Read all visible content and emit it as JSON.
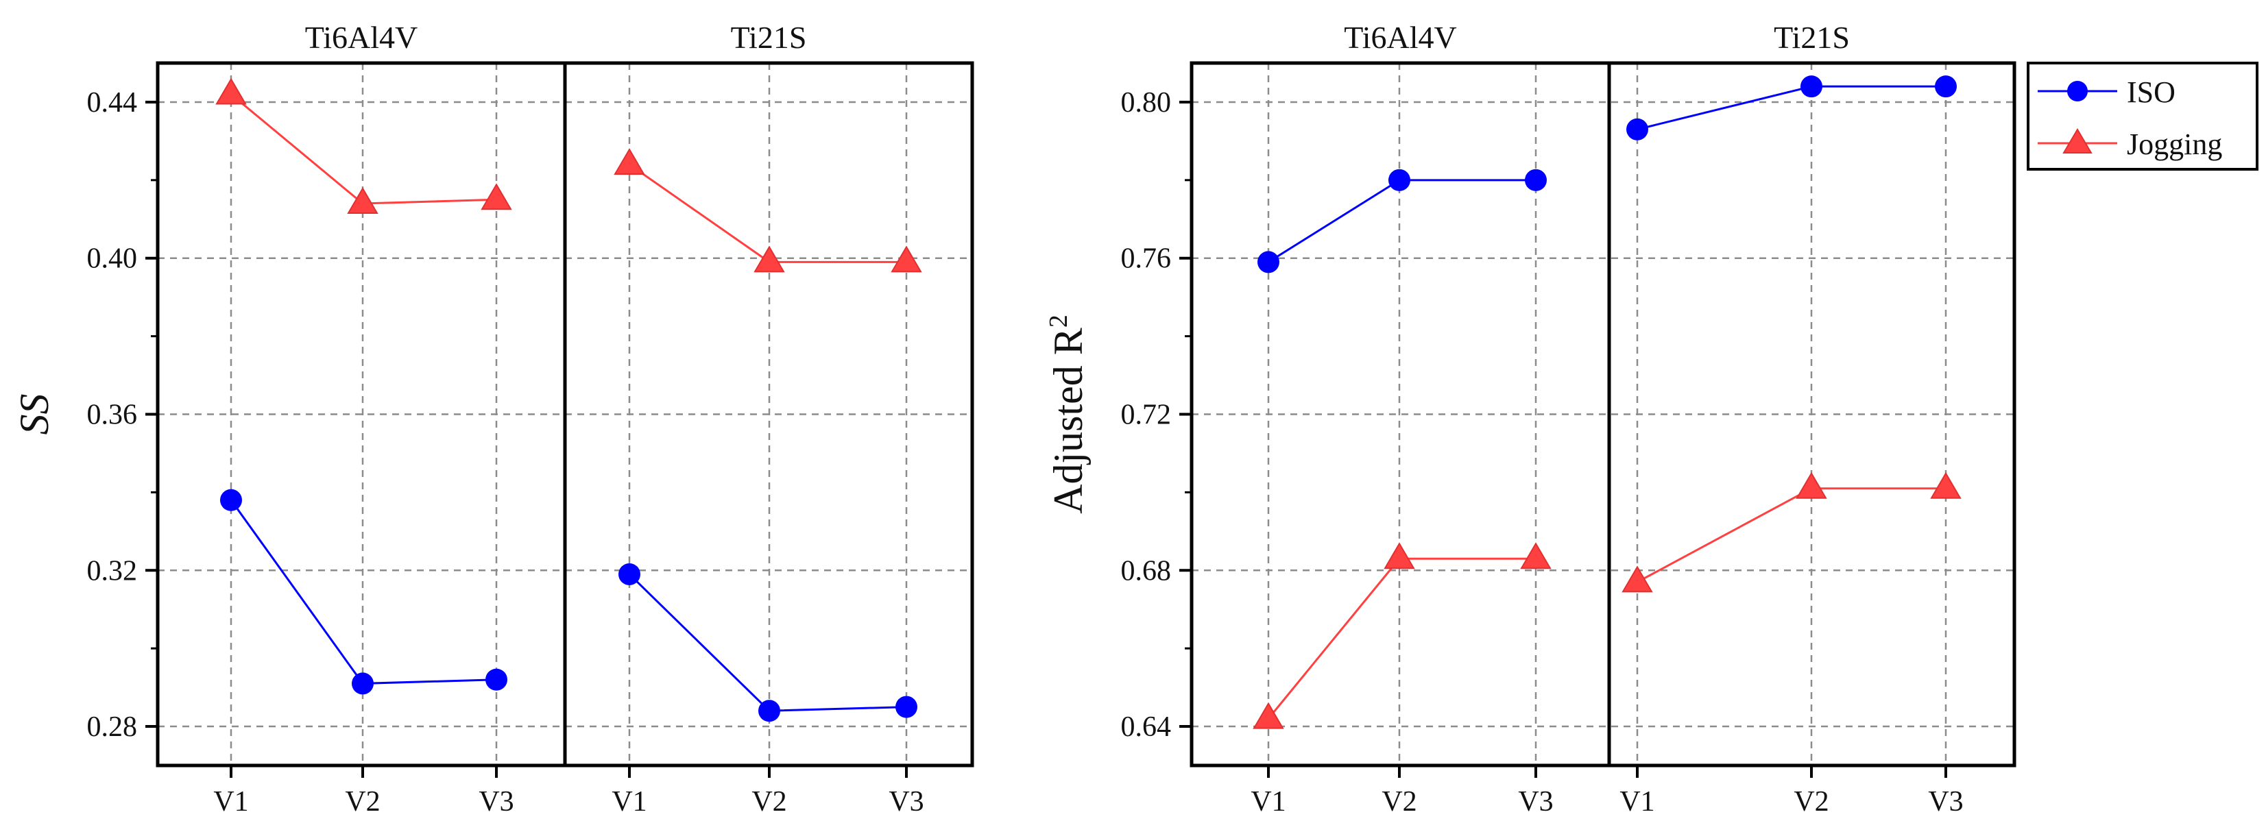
{
  "chart_data": [
    {
      "type": "line",
      "ylabel": "SS",
      "ylim": [
        0.27,
        0.45
      ],
      "yticks": [
        0.28,
        0.32,
        0.36,
        0.4,
        0.44
      ],
      "ytick_labels": [
        "0.28",
        "0.32",
        "0.36",
        "0.40",
        "0.44"
      ],
      "grid": true,
      "panels": [
        {
          "title": "Ti6Al4V",
          "categories": [
            "V1",
            "V2",
            "V3"
          ],
          "series": [
            {
              "name": "ISO",
              "values": [
                0.338,
                0.291,
                0.292
              ]
            },
            {
              "name": "Jogging",
              "values": [
                0.442,
                0.414,
                0.415
              ]
            }
          ]
        },
        {
          "title": "Ti21S",
          "categories": [
            "V1",
            "V2",
            "V3"
          ],
          "series": [
            {
              "name": "ISO",
              "values": [
                0.319,
                0.284,
                0.285
              ]
            },
            {
              "name": "Jogging",
              "values": [
                0.424,
                0.399,
                0.399
              ]
            }
          ]
        }
      ]
    },
    {
      "type": "line",
      "ylabel": "Adjusted R",
      "ylabel_superscript": "2",
      "ylim": [
        0.63,
        0.81
      ],
      "yticks": [
        0.64,
        0.68,
        0.72,
        0.76,
        0.8
      ],
      "ytick_labels": [
        "0.64",
        "0.68",
        "0.72",
        "0.76",
        "0.80"
      ],
      "grid": true,
      "panels": [
        {
          "title": "Ti6Al4V",
          "categories": [
            "V1",
            "V2",
            "V3"
          ],
          "series": [
            {
              "name": "ISO",
              "values": [
                0.759,
                0.78,
                0.78
              ]
            },
            {
              "name": "Jogging",
              "values": [
                0.642,
                0.683,
                0.683
              ]
            }
          ]
        },
        {
          "title": "Ti21S",
          "categories": [
            "V1",
            "V2",
            "V3"
          ],
          "series": [
            {
              "name": "ISO",
              "values": [
                0.793,
                0.804,
                0.804
              ]
            },
            {
              "name": "Jogging",
              "values": [
                0.677,
                0.701,
                0.701
              ]
            }
          ]
        }
      ]
    }
  ],
  "legend": {
    "placement": "top-right",
    "items": [
      {
        "label": "ISO",
        "color": "#0000ff",
        "marker": "circle"
      },
      {
        "label": "Jogging",
        "color": "#ff4040",
        "marker": "triangle"
      }
    ]
  },
  "colors": {
    "ISO": "#0000ff",
    "Jogging": "#ff4040",
    "grid": "#8c8c8c",
    "frame": "#000000"
  }
}
